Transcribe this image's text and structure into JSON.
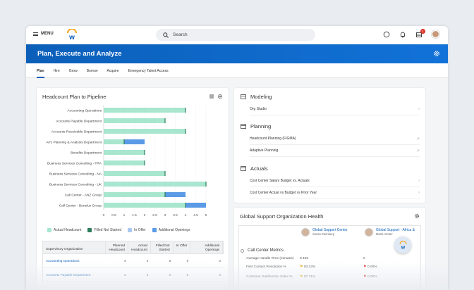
{
  "topbar": {
    "menu_label": "MENU",
    "search_placeholder": "Search",
    "inbox_badge": "1"
  },
  "banner": {
    "title": "Plan, Execute and Analyze"
  },
  "tabs": [
    {
      "label": "Plan",
      "active": true
    },
    {
      "label": "Hire"
    },
    {
      "label": "Grow"
    },
    {
      "label": "Borrow"
    },
    {
      "label": "Acquire"
    },
    {
      "label": "Emergency Talent Access"
    }
  ],
  "headcount": {
    "title": "Headcount Plan to Pipeline",
    "legend": [
      "Actual Headcount",
      "Filled Not Started",
      "In Offer",
      "Additional Openings"
    ],
    "table": {
      "headers": [
        "Supervisory Organization",
        "Planned Headcount",
        "Actual Headcount",
        "Filled Not Started",
        "In Offer",
        "Additional Openings"
      ],
      "rows": [
        [
          "Accounting Operations",
          "4",
          "4",
          "0",
          "0",
          "0"
        ],
        [
          "Accounts Payable Department",
          "3",
          "3",
          "0",
          "0",
          "0"
        ]
      ]
    }
  },
  "chart_data": {
    "type": "bar",
    "orientation": "horizontal",
    "stacked": true,
    "title": "Headcount Plan to Pipeline",
    "categories": [
      "Accounting Operations",
      "Accounts Payable Department",
      "Accounts Receivable Department",
      "APJ Planning & Analysis Department",
      "Benefits Department",
      "Business Services Consulting - FRA",
      "Business Services Consulting - NA",
      "Business Services Consulting - UK",
      "Call Center - ANZ Group",
      "Call Center - Benelux Group"
    ],
    "series": [
      {
        "name": "Actual Headcount",
        "color": "#a8e6cf",
        "values": [
          4,
          3,
          4,
          1,
          2,
          2,
          3,
          5,
          3,
          4
        ]
      },
      {
        "name": "Filled Not Started",
        "color": "#2e7d5b",
        "values": [
          0,
          0,
          0,
          0,
          0,
          0,
          0,
          0,
          0,
          0
        ]
      },
      {
        "name": "In Offer",
        "color": "#a9c8f0",
        "values": [
          0,
          0,
          0,
          0,
          0,
          0,
          0,
          0,
          0,
          0
        ]
      },
      {
        "name": "Additional Openings",
        "color": "#5b9ae6",
        "values": [
          0,
          0,
          0,
          1,
          0,
          0,
          0,
          0,
          1,
          1
        ]
      }
    ],
    "x_ticks": [
      "0",
      "0.5",
      "1",
      "1.5",
      "2",
      "2.5",
      "3",
      "3.5",
      "4",
      "4.5",
      "5"
    ],
    "xlim": [
      0,
      5
    ]
  },
  "modeling": {
    "title": "Modeling",
    "items": [
      "Org Studio"
    ]
  },
  "planning": {
    "title": "Planning",
    "items": [
      "Headcount Planning (FIGMA)",
      "Adaptive Planning"
    ]
  },
  "actuals": {
    "title": "Actuals",
    "items": [
      "Cost Center Salary Budget vs. Actuals",
      "Cost Center Actual vs Budget vs Prior Year"
    ]
  },
  "gso": {
    "title": "Global Support Organization Health",
    "people": [
      {
        "org": "Global Support Center",
        "name": "Susan Steinberg"
      },
      {
        "org": "Global Support - Africa &",
        "name": "Maria Venter"
      }
    ],
    "metrics_title": "Call Center Metrics",
    "metrics": [
      {
        "label": "Average Handle Time (minutes)",
        "v1": "9.425",
        "v2": "0"
      },
      {
        "label": "First Contact Resolution %",
        "v1": "83.23%",
        "v2": "0.00%"
      },
      {
        "label": "Customer Satisfaction Index %",
        "v1": "97.71%",
        "v2": "0.00%"
      }
    ]
  },
  "colors": {
    "brand": "#0b5fb9",
    "alert": "#d93025"
  }
}
